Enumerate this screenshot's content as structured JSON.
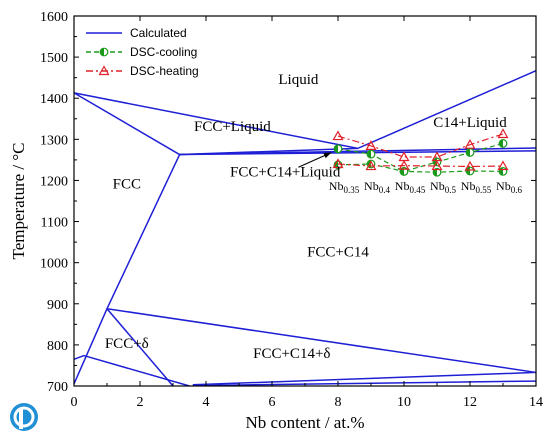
{
  "chart_data": {
    "type": "line",
    "xlabel": "Nb content / at.%",
    "ylabel": "Temperature / °C",
    "xlim": [
      0,
      14
    ],
    "ylim": [
      700,
      1600
    ],
    "x_ticks": [
      0,
      2,
      4,
      6,
      8,
      10,
      12,
      14
    ],
    "y_ticks": [
      700,
      800,
      900,
      1000,
      1100,
      1200,
      1300,
      1400,
      1500,
      1600
    ],
    "legend": {
      "position": "top-left",
      "entries": [
        {
          "label": "Calculated",
          "style": "solid",
          "color": "#1f1fd6"
        },
        {
          "label": "DSC-cooling",
          "style": "dashed",
          "color": "#1a9a1a",
          "marker": "half-filled circle"
        },
        {
          "label": "DSC-heating",
          "style": "dash-dot",
          "color": "#e0212a",
          "marker": "open triangle"
        }
      ]
    },
    "calculated_boundaries": [
      [
        [
          0,
          1413
        ],
        [
          8.6,
          1278
        ],
        [
          14,
          1467
        ]
      ],
      [
        [
          0,
          1413
        ],
        [
          3.2,
          1263
        ]
      ],
      [
        [
          3.2,
          1263
        ],
        [
          1.0,
          888
        ],
        [
          0,
          705
        ]
      ],
      [
        [
          3.2,
          1263
        ],
        [
          8.6,
          1278
        ]
      ],
      [
        [
          3.2,
          1263
        ],
        [
          14,
          1279
        ]
      ],
      [
        [
          3.2,
          1263
        ],
        [
          14,
          1272
        ]
      ],
      [
        [
          1.0,
          888
        ],
        [
          14,
          733
        ]
      ],
      [
        [
          1.0,
          888
        ],
        [
          3.0,
          700
        ]
      ],
      [
        [
          0.3,
          774
        ],
        [
          3.5,
          700
        ]
      ],
      [
        [
          0.3,
          774
        ],
        [
          0,
          765
        ]
      ],
      [
        [
          3.6,
          703
        ],
        [
          14,
          733
        ]
      ],
      [
        [
          3.6,
          701
        ],
        [
          14,
          712
        ]
      ]
    ],
    "series": [
      {
        "name": "DSC-cooling",
        "x": [
          8,
          9,
          10,
          11,
          12,
          13
        ],
        "y": [
          1277,
          1264,
          1222,
          1245,
          1268,
          1290
        ]
      },
      {
        "name": "DSC-cooling",
        "x": [
          8,
          9,
          10,
          11,
          12,
          13
        ],
        "y": [
          1238,
          1240,
          1222,
          1220,
          1223,
          1222
        ]
      },
      {
        "name": "DSC-heating",
        "x": [
          8,
          9,
          10,
          11,
          12,
          13
        ],
        "y": [
          1308,
          1284,
          1257,
          1257,
          1287,
          1313
        ]
      },
      {
        "name": "DSC-heating",
        "x": [
          8,
          9,
          10,
          11,
          12,
          13
        ],
        "y": [
          1240,
          1235,
          1236,
          1235,
          1234,
          1235
        ]
      }
    ],
    "regions": [
      {
        "label": "Liquid",
        "x": 6.8,
        "y": 1435
      },
      {
        "label": "C14+Liquid",
        "x": 12.0,
        "y": 1330
      },
      {
        "label": "FCC+Liquid",
        "x": 4.8,
        "y": 1320
      },
      {
        "label": "FCC",
        "x": 1.6,
        "y": 1180
      },
      {
        "label": "FCC+C14+Liquid",
        "x": 6.4,
        "y": 1210
      },
      {
        "label": "FCC+C14",
        "x": 8.0,
        "y": 1015
      },
      {
        "label": "FCC+δ",
        "x": 1.6,
        "y": 792
      },
      {
        "label": "FCC+C14+δ",
        "x": 6.6,
        "y": 768
      }
    ],
    "sample_labels": [
      {
        "name": "Nb",
        "sub": "0.35",
        "x": 8
      },
      {
        "name": "Nb",
        "sub": "0.4",
        "x": 9
      },
      {
        "name": "Nb",
        "sub": "0.45",
        "x": 10
      },
      {
        "name": "Nb",
        "sub": "0.5",
        "x": 11
      },
      {
        "name": "Nb",
        "sub": "0.55",
        "x": 12
      },
      {
        "name": "Nb",
        "sub": "0.6",
        "x": 13
      }
    ],
    "annotation_arrow": {
      "from": [
        6.8,
        1232
      ],
      "to": [
        7.8,
        1268
      ]
    },
    "colors": {
      "calculated": "#1f1fd6",
      "cooling": "#1a9a1a",
      "heating": "#e0212a",
      "axis": "#000000"
    }
  }
}
